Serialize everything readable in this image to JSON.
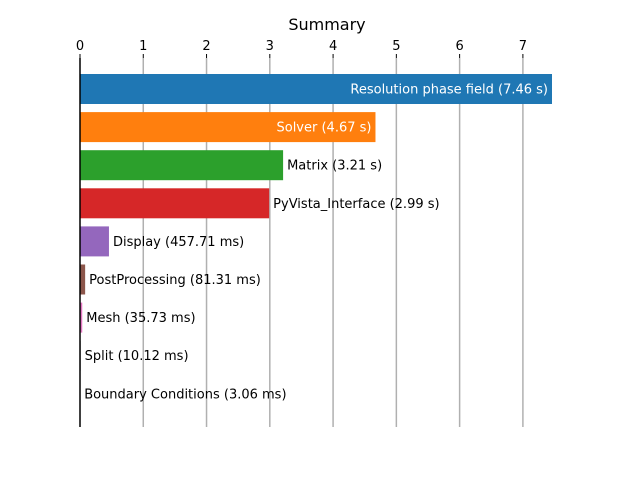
{
  "chart_data": {
    "type": "bar",
    "orientation": "horizontal",
    "title": "Summary",
    "xlabel": "",
    "ylabel": "",
    "xlim": [
      0,
      7.46
    ],
    "xticks": [
      0,
      1,
      2,
      3,
      4,
      5,
      6,
      7
    ],
    "x_axis_position": "top",
    "grid": "vertical",
    "bars": [
      {
        "label": "Resolution phase field (7.46 s)",
        "value": 7.46,
        "color": "#1f77b4",
        "label_inside": true
      },
      {
        "label": "Solver (4.67 s)",
        "value": 4.67,
        "color": "#ff7f0e",
        "label_inside": true
      },
      {
        "label": "Matrix (3.21 s)",
        "value": 3.21,
        "color": "#2ca02c",
        "label_inside": false
      },
      {
        "label": "PyVista_Interface (2.99 s)",
        "value": 2.99,
        "color": "#d62728",
        "label_inside": false
      },
      {
        "label": "Display (457.71 ms)",
        "value": 0.45771,
        "color": "#9467bd",
        "label_inside": false
      },
      {
        "label": "PostProcessing (81.31 ms)",
        "value": 0.08131,
        "color": "#8c564b",
        "label_inside": false
      },
      {
        "label": "Mesh (35.73 ms)",
        "value": 0.03573,
        "color": "#e377c2",
        "label_inside": false
      },
      {
        "label": "Split (10.12 ms)",
        "value": 0.01012,
        "color": "#7f7f7f",
        "label_inside": false
      },
      {
        "label": "Boundary Conditions (3.06 ms)",
        "value": 0.00306,
        "color": "#bcbd22",
        "label_inside": false
      }
    ]
  }
}
